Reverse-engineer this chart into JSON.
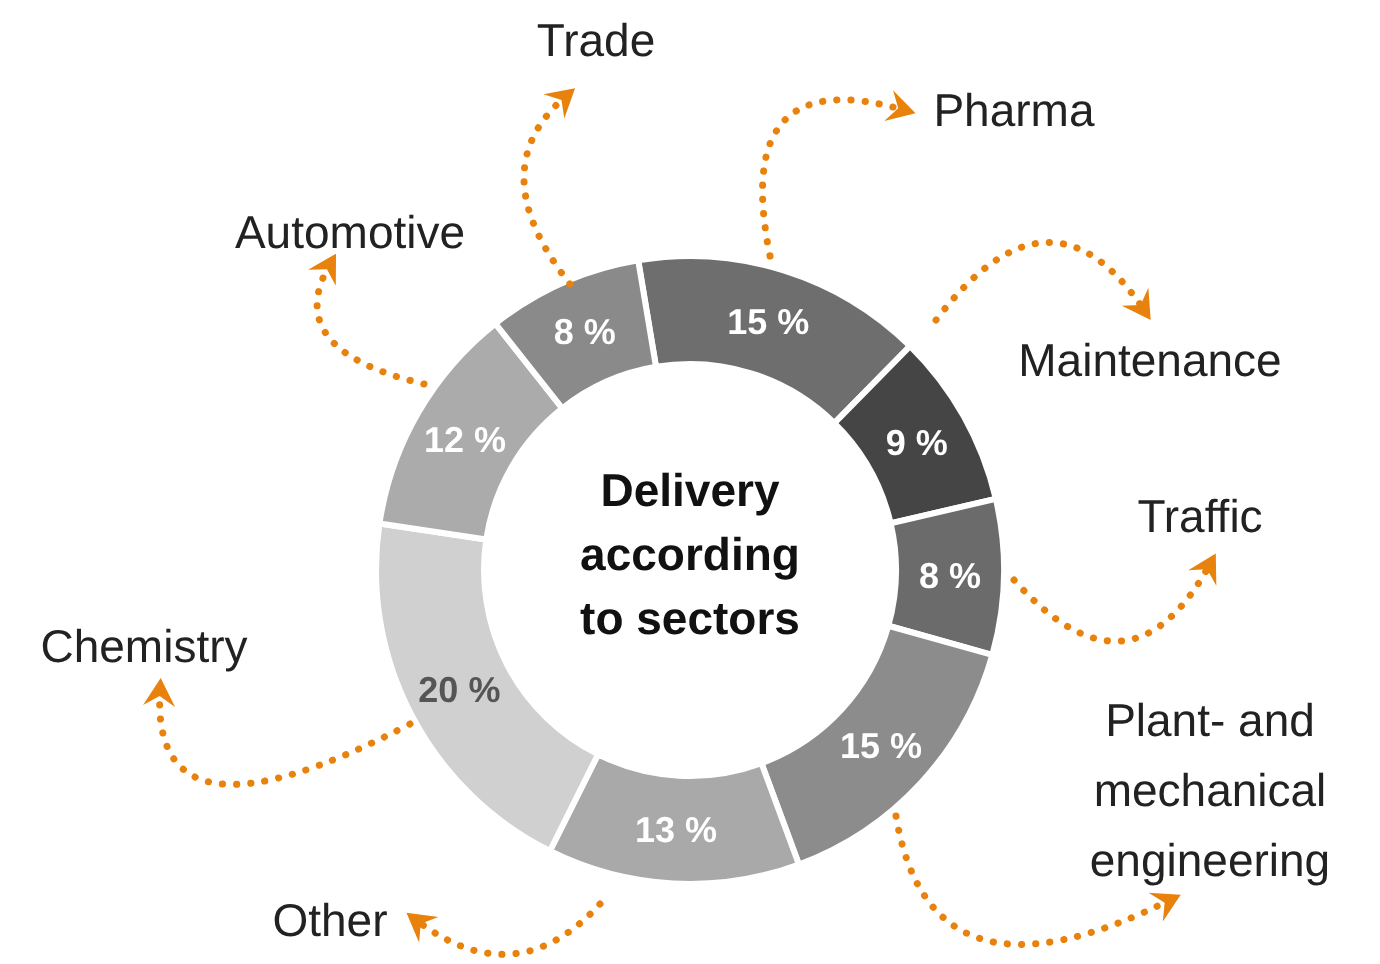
{
  "chart_data": {
    "type": "donut",
    "title": "Delivery according to sectors",
    "categories": [
      "Pharma",
      "Maintenance",
      "Traffic",
      "Plant- and mechanical engineering",
      "Other",
      "Chemistry",
      "Automotive",
      "Trade"
    ],
    "values": [
      15,
      9,
      8,
      15,
      13,
      20,
      12,
      8
    ],
    "colors": [
      "#6e6e6e",
      "#454545",
      "#6b6b6b",
      "#8c8c8c",
      "#a9a9a9",
      "#d0d0d0",
      "#ababab",
      "#8a8a8a"
    ],
    "value_labels": [
      "15 %",
      "9 %",
      "8 %",
      "15 %",
      "13 %",
      "20 %",
      "12 %",
      "8 %"
    ],
    "legend": false
  }
}
